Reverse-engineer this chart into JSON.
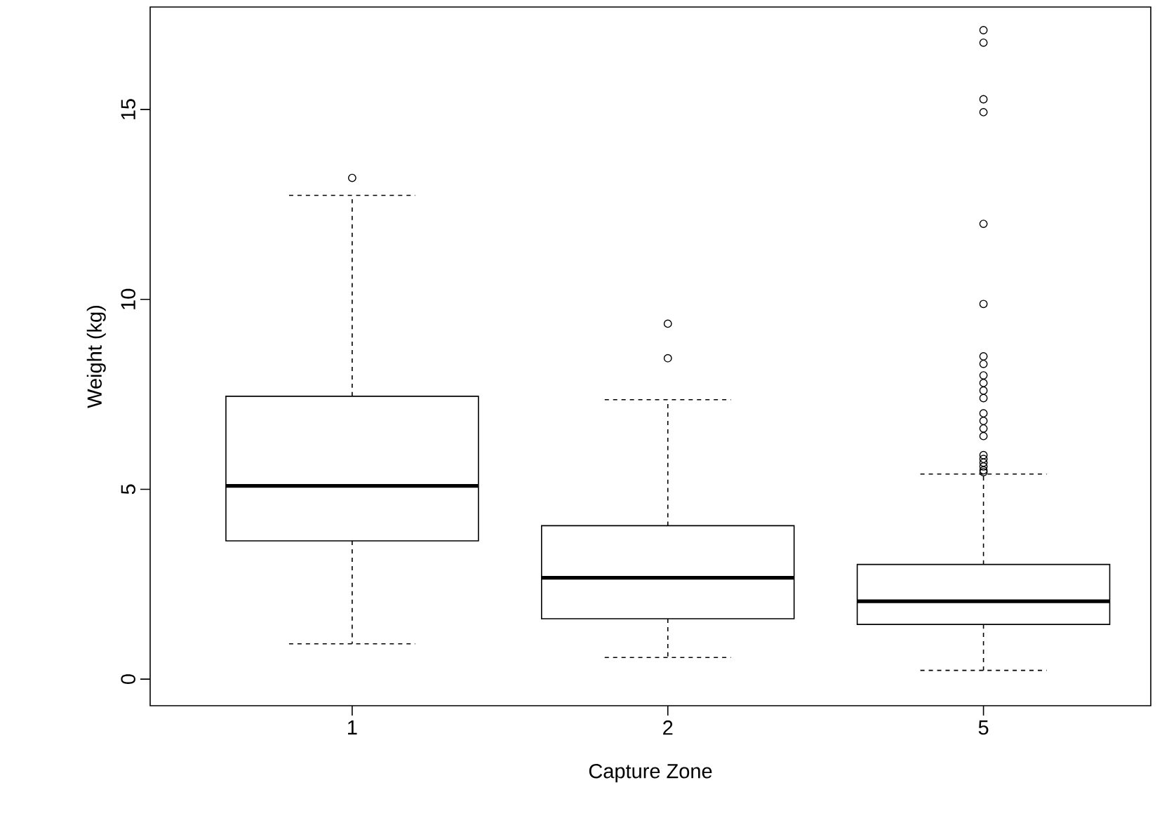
{
  "chart_data": {
    "type": "box",
    "xlabel": "Capture Zone",
    "ylabel": "Weight (kg)",
    "categories": [
      "1",
      "2",
      "5"
    ],
    "boxes": [
      {
        "low": 0.93,
        "q1": 3.64,
        "median": 5.09,
        "q3": 7.45,
        "high": 12.74,
        "outliers": [
          13.2
        ]
      },
      {
        "low": 0.57,
        "q1": 1.59,
        "median": 2.67,
        "q3": 4.04,
        "high": 7.36,
        "outliers": [
          8.45,
          9.36
        ]
      },
      {
        "low": 0.23,
        "q1": 1.44,
        "median": 2.05,
        "q3": 3.02,
        "high": 5.4,
        "outliers": [
          5.45,
          5.5,
          5.6,
          5.7,
          5.8,
          5.9,
          6.4,
          6.6,
          6.8,
          7.0,
          7.4,
          7.6,
          7.8,
          8.0,
          8.3,
          8.5,
          9.88,
          11.99,
          14.93,
          15.27,
          16.76,
          17.09
        ]
      }
    ],
    "ylim": [
      -0.7,
      17.7
    ],
    "yticks": [
      0,
      5,
      10,
      15
    ],
    "marker": "circle"
  }
}
